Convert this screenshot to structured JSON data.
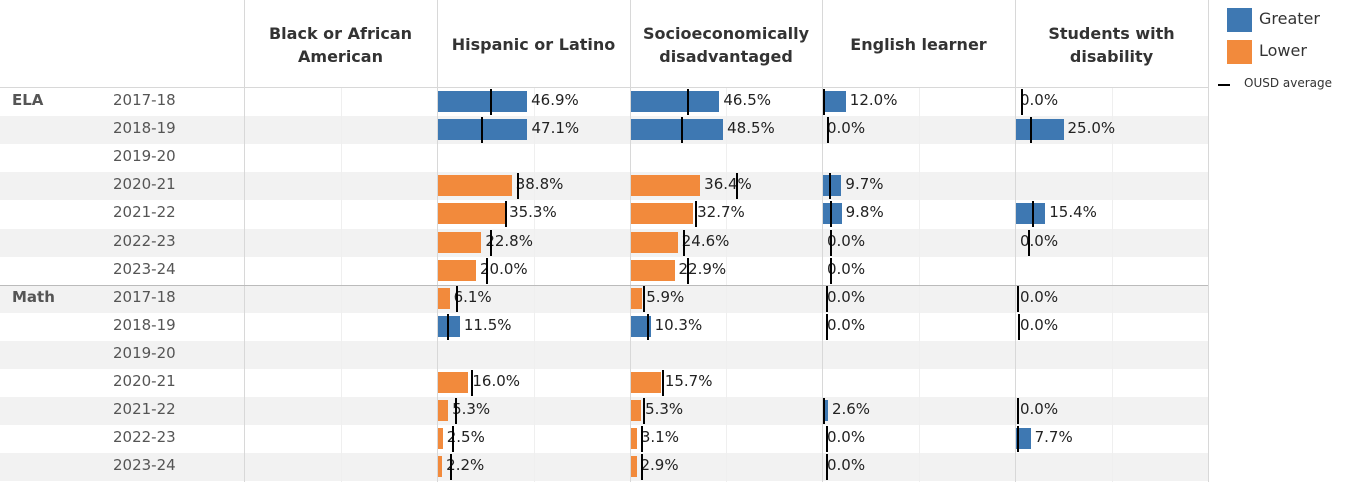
{
  "columns": [
    "Black or African American",
    "Hispanic or Latino",
    "Socioeconomically disadvantaged",
    "English learner",
    "Students with disability"
  ],
  "legend": [
    {
      "name": "Greater",
      "color": "#3e78b2"
    },
    {
      "name": "Lower",
      "color": "#f28a3c"
    }
  ],
  "average_label": "OUSD average",
  "subjects": [
    {
      "name": "ELA",
      "years": [
        "2017-18",
        "2018-19",
        "2019-20",
        "2020-21",
        "2021-22",
        "2022-23",
        "2023-24"
      ],
      "cells": [
        [
          null,
          {
            "value": 46.9,
            "value_label": "46.9%",
            "average": 28,
            "status": "Greater"
          },
          {
            "value": 46.5,
            "value_label": "46.5%",
            "average": 30,
            "status": "Greater"
          },
          {
            "value": 12.0,
            "value_label": "12.0%",
            "average": 0.5,
            "status": "Greater"
          },
          {
            "value": 0,
            "value_label": "0.0%",
            "average": 3,
            "status": "Lower"
          }
        ],
        [
          null,
          {
            "value": 47.1,
            "value_label": "47.1%",
            "average": 23,
            "status": "Greater"
          },
          {
            "value": 48.5,
            "value_label": "48.5%",
            "average": 27,
            "status": "Greater"
          },
          {
            "value": 0,
            "value_label": "0.0%",
            "average": 2.5,
            "status": "Lower"
          },
          {
            "value": 25.0,
            "value_label": "25.0%",
            "average": 8,
            "status": "Greater"
          }
        ],
        [
          null,
          null,
          null,
          null,
          null
        ],
        [
          null,
          {
            "value": 38.8,
            "value_label": "38.8%",
            "average": 42,
            "status": "Lower"
          },
          {
            "value": 36.4,
            "value_label": "36.4%",
            "average": 56,
            "status": "Lower"
          },
          {
            "value": 9.7,
            "value_label": "9.7%",
            "average": 3.7,
            "status": "Greater"
          },
          null
        ],
        [
          null,
          {
            "value": 35.3,
            "value_label": "35.3%",
            "average": 36,
            "status": "Lower"
          },
          {
            "value": 32.7,
            "value_label": "32.7%",
            "average": 34,
            "status": "Lower"
          },
          {
            "value": 9.8,
            "value_label": "9.8%",
            "average": 4,
            "status": "Greater"
          },
          {
            "value": 15.4,
            "value_label": "15.4%",
            "average": 9,
            "status": "Greater"
          }
        ],
        [
          null,
          {
            "value": 22.8,
            "value_label": "22.8%",
            "average": 28,
            "status": "Lower"
          },
          {
            "value": 24.6,
            "value_label": "24.6%",
            "average": 28,
            "status": "Lower"
          },
          {
            "value": 0,
            "value_label": "0.0%",
            "average": 4,
            "status": "Lower"
          },
          {
            "value": 0,
            "value_label": "0.0%",
            "average": 7,
            "status": "Lower"
          }
        ],
        [
          null,
          {
            "value": 20.0,
            "value_label": "20.0%",
            "average": 26,
            "status": "Lower"
          },
          {
            "value": 22.9,
            "value_label": "22.9%",
            "average": 30,
            "status": "Lower"
          },
          {
            "value": 0,
            "value_label": "0.0%",
            "average": 4,
            "status": "Lower"
          },
          null
        ]
      ]
    },
    {
      "name": "Math",
      "years": [
        "2017-18",
        "2018-19",
        "2019-20",
        "2020-21",
        "2021-22",
        "2022-23",
        "2023-24"
      ],
      "cells": [
        [
          null,
          {
            "value": 6.1,
            "value_label": "6.1%",
            "average": 10,
            "status": "Lower"
          },
          {
            "value": 5.9,
            "value_label": "5.9%",
            "average": 7,
            "status": "Lower"
          },
          {
            "value": 0,
            "value_label": "0.0%",
            "average": 2,
            "status": "Lower"
          },
          {
            "value": 0,
            "value_label": "0.0%",
            "average": 1,
            "status": "Lower"
          }
        ],
        [
          null,
          {
            "value": 11.5,
            "value_label": "11.5%",
            "average": 5,
            "status": "Greater"
          },
          {
            "value": 10.3,
            "value_label": "10.3%",
            "average": 9,
            "status": "Greater"
          },
          {
            "value": 0,
            "value_label": "0.0%",
            "average": 2,
            "status": "Lower"
          },
          {
            "value": 0,
            "value_label": "0.0%",
            "average": 1.5,
            "status": "Lower"
          }
        ],
        [
          null,
          null,
          null,
          null,
          null
        ],
        [
          null,
          {
            "value": 16.0,
            "value_label": "16.0%",
            "average": 18,
            "status": "Lower"
          },
          {
            "value": 15.7,
            "value_label": "15.7%",
            "average": 17,
            "status": "Lower"
          },
          null,
          null
        ],
        [
          null,
          {
            "value": 5.3,
            "value_label": "5.3%",
            "average": 9.5,
            "status": "Lower"
          },
          {
            "value": 5.3,
            "value_label": "5.3%",
            "average": 7,
            "status": "Lower"
          },
          {
            "value": 2.6,
            "value_label": "2.6%",
            "average": 0.5,
            "status": "Greater"
          },
          {
            "value": 0,
            "value_label": "0.0%",
            "average": 1,
            "status": "Lower"
          }
        ],
        [
          null,
          {
            "value": 2.5,
            "value_label": "2.5%",
            "average": 8,
            "status": "Lower"
          },
          {
            "value": 3.1,
            "value_label": "3.1%",
            "average": 6,
            "status": "Lower"
          },
          {
            "value": 0,
            "value_label": "0.0%",
            "average": 2,
            "status": "Lower"
          },
          {
            "value": 7.7,
            "value_label": "7.7%",
            "average": 1,
            "status": "Greater"
          }
        ],
        [
          null,
          {
            "value": 2.2,
            "value_label": "2.2%",
            "average": 7,
            "status": "Lower"
          },
          {
            "value": 2.9,
            "value_label": "2.9%",
            "average": 6,
            "status": "Lower"
          },
          {
            "value": 0,
            "value_label": "0.0%",
            "average": 2,
            "status": "Lower"
          },
          null
        ]
      ]
    }
  ]
}
